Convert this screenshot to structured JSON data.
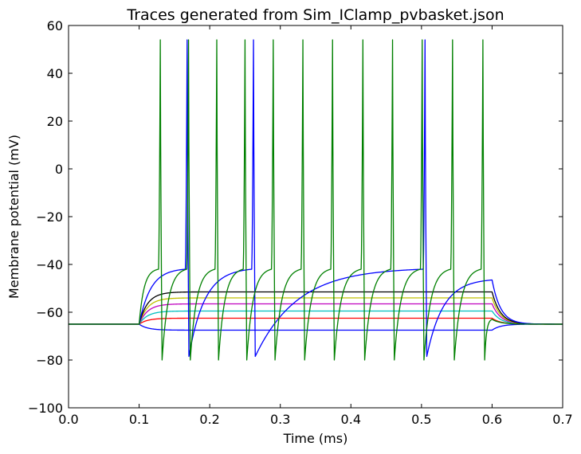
{
  "chart_data": {
    "type": "line",
    "title": "Traces generated from Sim_IClamp_pvbasket.json",
    "xlabel": "Time (ms)",
    "ylabel": "Membrane potential (mV)",
    "xlim": [
      0.0,
      0.7
    ],
    "ylim": [
      -100,
      60
    ],
    "xticks": [
      "0.0",
      "0.1",
      "0.2",
      "0.3",
      "0.4",
      "0.5",
      "0.6",
      "0.7"
    ],
    "yticks": [
      "60",
      "40",
      "20",
      "0",
      "−20",
      "−40",
      "−60",
      "−80",
      "−100"
    ],
    "grid": false,
    "legend": "none",
    "stimulus": {
      "onset": 0.1,
      "offset": 0.6,
      "rest": -65
    },
    "series": [
      {
        "color": "#0000ff",
        "kind": "subthreshold",
        "plateau": -67.5
      },
      {
        "color": "#ff0000",
        "kind": "subthreshold",
        "plateau": -62.5
      },
      {
        "color": "#00bfbf",
        "kind": "subthreshold",
        "plateau": -59.5
      },
      {
        "color": "#bf00bf",
        "kind": "subthreshold",
        "plateau": -56.5
      },
      {
        "color": "#bfbf00",
        "kind": "subthreshold",
        "plateau": -54
      },
      {
        "color": "#000000",
        "kind": "subthreshold",
        "plateau": -51.5
      },
      {
        "color": "#0000ff",
        "kind": "spiking",
        "spike_times": [
          0.168,
          0.262,
          0.505
        ],
        "peak": 54,
        "trough": -78.5,
        "end_value": -46.5
      },
      {
        "color": "#008000",
        "kind": "spiking",
        "spike_times": [
          0.13,
          0.17,
          0.21,
          0.25,
          0.29,
          0.332,
          0.374,
          0.417,
          0.459,
          0.501,
          0.544,
          0.587
        ],
        "peak": 54,
        "trough": -80,
        "end_value": -63
      }
    ]
  }
}
